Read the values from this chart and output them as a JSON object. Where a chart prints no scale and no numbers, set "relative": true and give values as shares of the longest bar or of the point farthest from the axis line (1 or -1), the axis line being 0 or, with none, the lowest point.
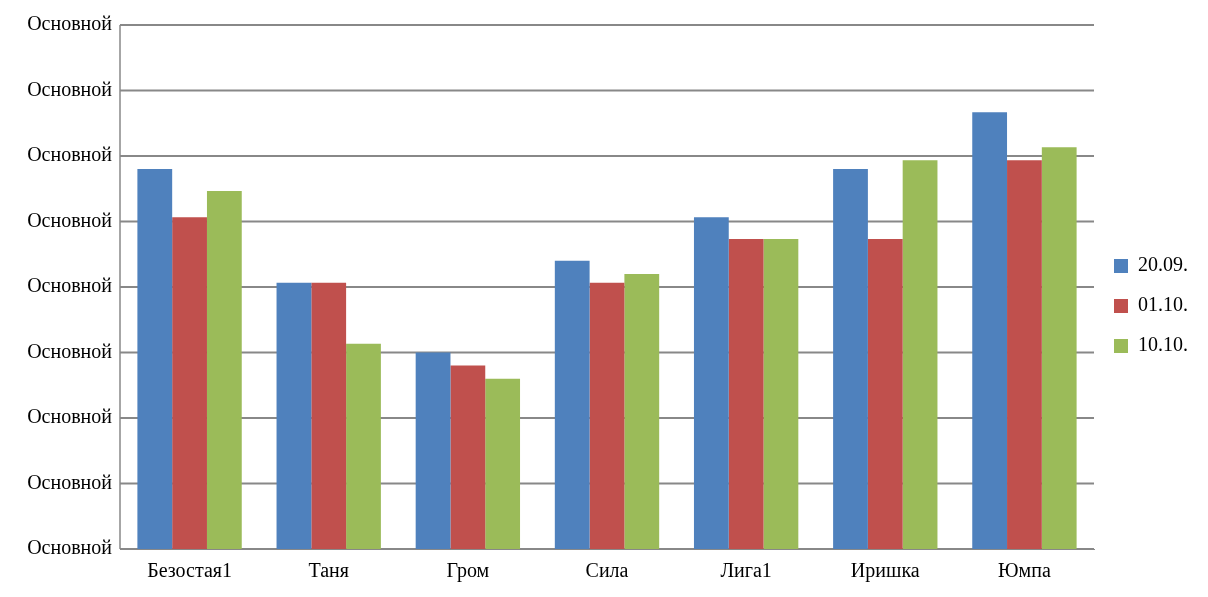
{
  "chart_data": {
    "type": "bar",
    "relative": true,
    "categories": [
      "Безостая1",
      "Таня",
      "Гром",
      "Сила",
      "Лига1",
      "Иришка",
      "Юмпа"
    ],
    "series": [
      {
        "name": "20.09.",
        "color": "#4f81bd",
        "values": [
          0.87,
          0.61,
          0.45,
          0.66,
          0.76,
          0.87,
          1
        ]
      },
      {
        "name": "01.10.",
        "color": "#c0504d",
        "values": [
          0.76,
          0.61,
          0.42,
          0.61,
          0.71,
          0.71,
          0.89
        ]
      },
      {
        "name": "10.10.",
        "color": "#9bbb59",
        "values": [
          0.82,
          0.47,
          0.39,
          0.63,
          0.71,
          0.89,
          0.92
        ]
      }
    ],
    "annotations": [
      "Основной",
      "Основной",
      "Основной",
      "Основной",
      "Основной",
      "Основной",
      "Основной",
      "Основной",
      "Основной"
    ],
    "grid": "y",
    "legend": "right"
  }
}
